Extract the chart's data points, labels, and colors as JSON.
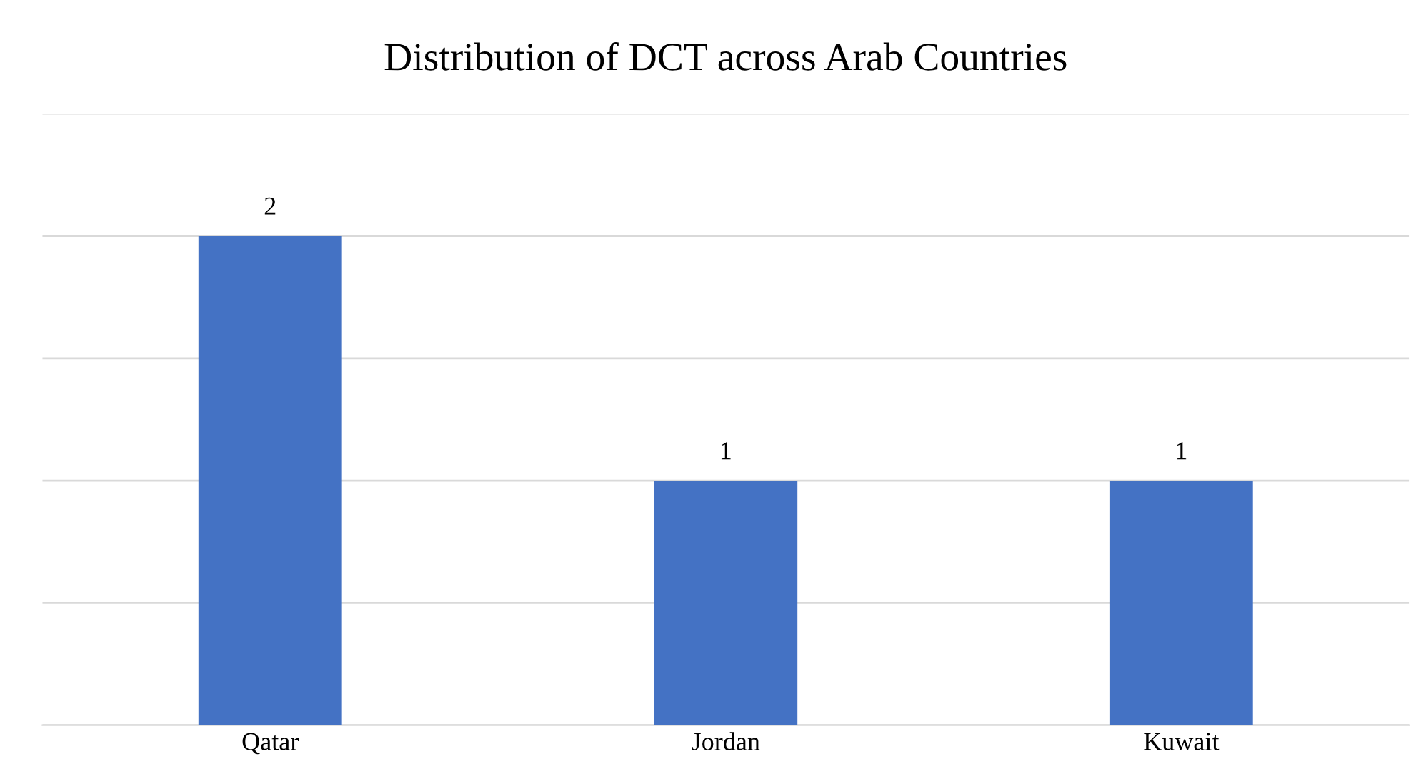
{
  "chart_data": {
    "type": "bar",
    "title": "Distribution of DCT across Arab Countries",
    "categories": [
      "Qatar",
      "Jordan",
      "Kuwait"
    ],
    "values": [
      2,
      1,
      1
    ],
    "color": "#4472c4",
    "ylim": [
      0,
      2.5
    ],
    "yticks": [
      {
        "value": 0,
        "label": null
      },
      {
        "value": 0.5,
        "label": null
      },
      {
        "value": 1,
        "label": null
      },
      {
        "value": 1.5,
        "label": null
      },
      {
        "value": 2,
        "label": null
      },
      {
        "value": 2.5,
        "label": null
      }
    ],
    "tick_labels": "x",
    "grid": "y",
    "data_labels": true
  }
}
